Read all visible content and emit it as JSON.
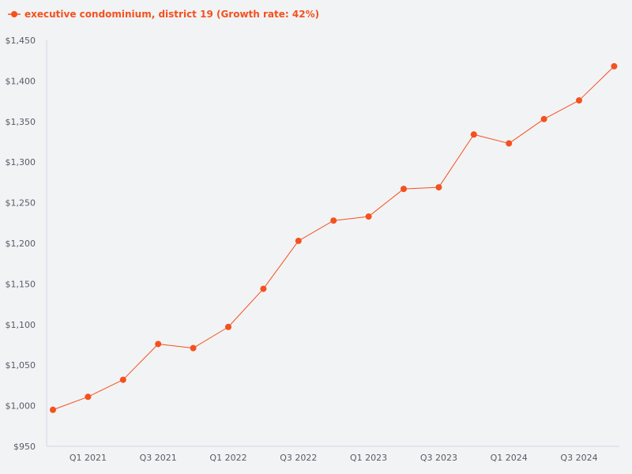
{
  "chart_data": {
    "type": "line",
    "title": "",
    "xlabel": "",
    "ylabel": "",
    "ylim": [
      950,
      1450
    ],
    "yticks": [
      950,
      1000,
      1050,
      1100,
      1150,
      1200,
      1250,
      1300,
      1350,
      1400,
      1450
    ],
    "ytick_labels": [
      "$950",
      "$1,000",
      "$1,050",
      "$1,100",
      "$1,150",
      "$1,200",
      "$1,250",
      "$1,300",
      "$1,350",
      "$1,400",
      "$1,450"
    ],
    "categories": [
      "Q4 2020",
      "Q1 2021",
      "Q2 2021",
      "Q3 2021",
      "Q4 2021",
      "Q1 2022",
      "Q2 2022",
      "Q3 2022",
      "Q4 2022",
      "Q1 2023",
      "Q2 2023",
      "Q3 2023",
      "Q4 2023",
      "Q1 2024",
      "Q2 2024",
      "Q3 2024",
      "Q4 2024"
    ],
    "xtick_labels": [
      {
        "index": 1,
        "label": "Q1 2021"
      },
      {
        "index": 3,
        "label": "Q3 2021"
      },
      {
        "index": 5,
        "label": "Q1 2022"
      },
      {
        "index": 7,
        "label": "Q3 2022"
      },
      {
        "index": 9,
        "label": "Q1 2023"
      },
      {
        "index": 11,
        "label": "Q3 2023"
      },
      {
        "index": 13,
        "label": "Q1 2024"
      },
      {
        "index": 15,
        "label": "Q3 2024"
      }
    ],
    "series": [
      {
        "name": "executive condominium, district 19",
        "color": "#f4511e",
        "values": [
          995,
          1011,
          1032,
          1076,
          1071,
          1097,
          1144,
          1203,
          1228,
          1233,
          1267,
          1269,
          1334,
          1323,
          1353,
          1376,
          1418
        ]
      }
    ],
    "legend": {
      "position": "top-left",
      "label": "executive condominium, district 19 (Growth rate: 42%)"
    }
  },
  "colors": {
    "background": "#f2f3f5",
    "axis": "#d2d6e8",
    "tick_text": "#555b66",
    "series": "#f4511e"
  }
}
